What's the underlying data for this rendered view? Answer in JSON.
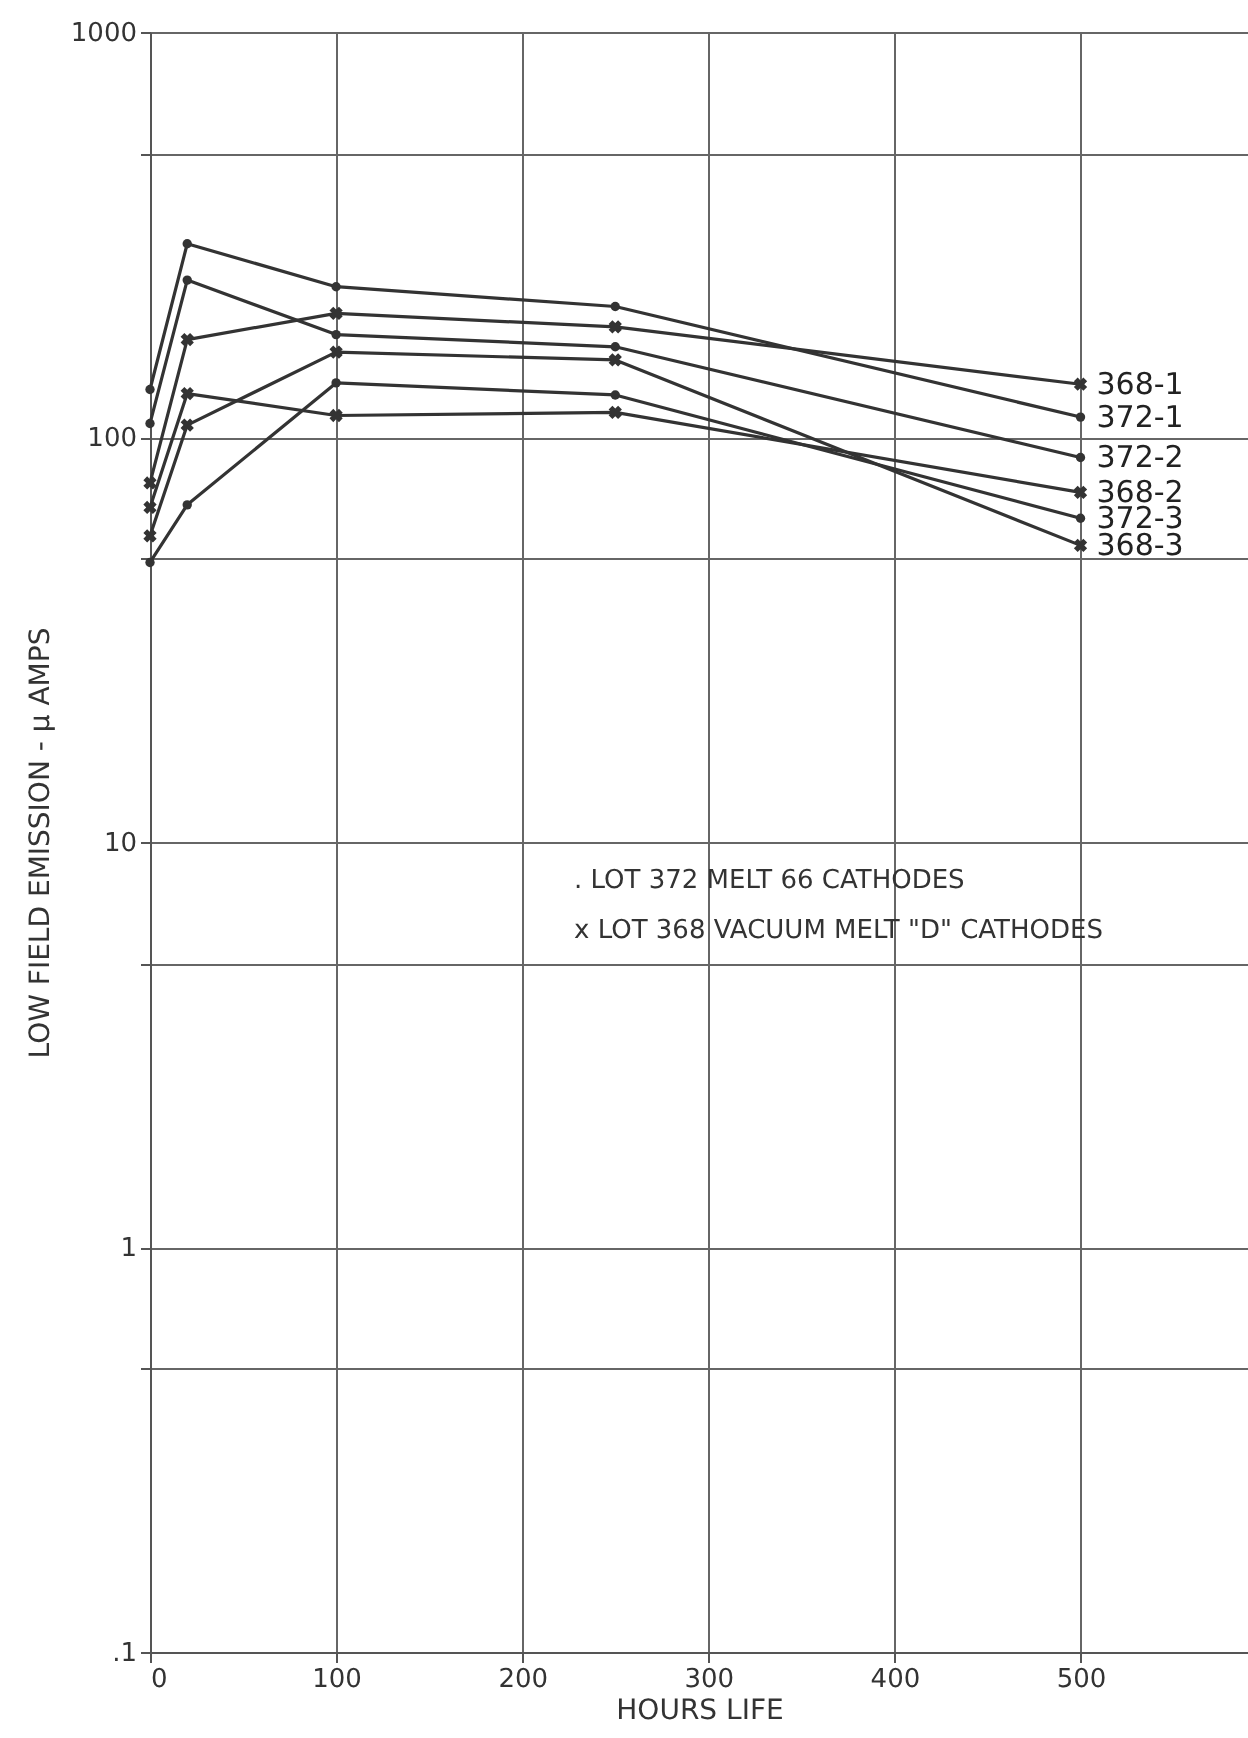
{
  "chart_data": {
    "type": "line",
    "xlabel": "HOURS LIFE",
    "ylabel": "LOW FIELD EMISSION - µ AMPS",
    "x": [
      0,
      20,
      100,
      250,
      500
    ],
    "series": [
      {
        "name": "368-1",
        "color": "#333333",
        "marker": "cross",
        "values": [
          77,
          174,
          202,
          187,
          135
        ]
      },
      {
        "name": "372-1",
        "color": "#333333",
        "marker": "circle",
        "values": [
          131,
          300,
          235,
          210,
          112
        ]
      },
      {
        "name": "372-2",
        "color": "#333333",
        "marker": "circle",
        "values": [
          108,
          244,
          179,
          167,
          89
        ]
      },
      {
        "name": "368-2",
        "color": "#333333",
        "marker": "cross",
        "values": [
          67,
          128,
          113,
          115,
          73
        ]
      },
      {
        "name": "372-3",
        "color": "#333333",
        "marker": "circle",
        "values": [
          49,
          68,
          136,
          127,
          63
        ]
      },
      {
        "name": "368-3",
        "color": "#333333",
        "marker": "cross",
        "values": [
          57,
          107,
          162,
          155,
          54
        ]
      }
    ],
    "log": true,
    "ylim": [
      0.1,
      1000
    ],
    "yticks": [
      1000,
      {
        "value": 500,
        "label": null
      },
      100,
      {
        "value": 50,
        "label": null
      },
      10,
      {
        "value": 5,
        "label": null
      },
      1,
      {
        "value": 0.5,
        "label": null
      },
      {
        "value": 0.1,
        "label": ".1"
      }
    ],
    "xlim": [
      0,
      590
    ],
    "xticks": [
      0,
      100,
      200,
      300,
      400,
      500
    ],
    "grid": true,
    "annotations": [
      ". LOT 372  MELT 66 CATHODES",
      "x LOT 368  VACUUM MELT \"D\" CATHODES"
    ]
  }
}
